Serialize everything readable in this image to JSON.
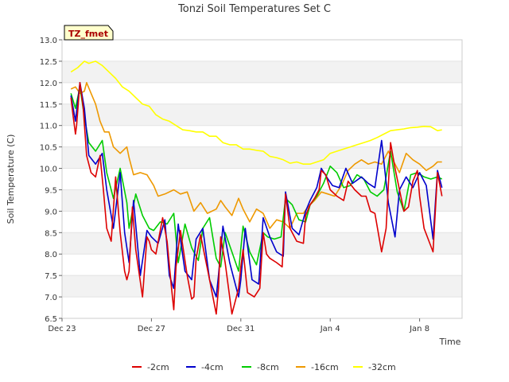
{
  "chart_data": {
    "type": "line",
    "title": "Tonzi Soil Temperatures Set C",
    "xlabel": "Time",
    "ylabel": "Soil Temperature (C)",
    "station_label": "TZ_fmet",
    "x_unit": "days since Dec 23",
    "xlim": [
      0,
      17.9
    ],
    "ylim": [
      6.5,
      13.0
    ],
    "y_ticks": [
      6.5,
      7.0,
      7.5,
      8.0,
      8.5,
      9.0,
      9.5,
      10.0,
      10.5,
      11.0,
      11.5,
      12.0,
      12.5,
      13.0
    ],
    "y_tick_labels": [
      "6.5",
      "7.0",
      "7.5",
      "8.0",
      "8.5",
      "9.0",
      "9.5",
      "10.0",
      "10.5",
      "11.0",
      "11.5",
      "12.0",
      "12.5",
      "13.0"
    ],
    "x_ticks": [
      0,
      4,
      8,
      12,
      16
    ],
    "x_tick_labels": [
      "Dec 23",
      "Dec 27",
      "Dec 31",
      "Jan 4",
      "Jan 8"
    ],
    "grid": true,
    "legend_position": "bottom",
    "series": [
      {
        "name": "-2cm",
        "color": "#dd0000",
        "x": [
          0.4,
          0.5,
          0.6,
          0.65,
          0.8,
          0.95,
          1.1,
          1.3,
          1.5,
          1.7,
          1.85,
          2.0,
          2.2,
          2.4,
          2.6,
          2.8,
          2.9,
          3.0,
          3.15,
          3.3,
          3.6,
          3.8,
          3.9,
          4.0,
          4.2,
          4.5,
          4.7,
          4.9,
          5.0,
          5.1,
          5.3,
          5.6,
          5.8,
          5.9,
          6.0,
          6.2,
          6.6,
          6.9,
          7.0,
          7.1,
          7.3,
          7.6,
          7.9,
          8.0,
          8.1,
          8.3,
          8.6,
          8.85,
          9.0,
          9.15,
          9.3,
          9.6,
          9.85,
          10.0,
          10.2,
          10.5,
          10.8,
          10.9,
          11.1,
          11.3,
          11.5,
          11.6,
          11.8,
          12.0,
          12.3,
          12.6,
          12.8,
          13.1,
          13.4,
          13.6,
          13.8,
          14.0,
          14.3,
          14.5,
          14.7,
          14.9,
          15.1,
          15.3,
          15.5,
          15.7,
          15.9,
          16.0,
          16.2,
          16.6,
          16.8,
          17.0
        ],
        "y": [
          11.65,
          11.2,
          10.8,
          11.0,
          12.0,
          11.4,
          10.3,
          9.9,
          9.8,
          10.3,
          9.5,
          8.6,
          8.3,
          9.8,
          8.5,
          7.6,
          7.4,
          7.6,
          9.1,
          8.1,
          7.0,
          8.4,
          8.3,
          8.1,
          8.0,
          8.85,
          8.3,
          7.2,
          6.7,
          7.7,
          8.55,
          7.5,
          6.95,
          7.0,
          7.9,
          8.45,
          7.4,
          6.6,
          7.2,
          8.4,
          7.8,
          6.6,
          7.2,
          7.7,
          8.1,
          7.1,
          7.0,
          7.2,
          8.5,
          8.0,
          7.9,
          7.8,
          7.7,
          9.4,
          8.6,
          8.3,
          8.25,
          8.9,
          9.15,
          9.3,
          9.5,
          9.95,
          9.85,
          9.5,
          9.35,
          9.25,
          9.7,
          9.5,
          9.35,
          9.35,
          9.0,
          8.95,
          8.05,
          8.6,
          10.6,
          10.0,
          9.5,
          9.0,
          9.1,
          9.7,
          9.95,
          9.35,
          8.6,
          8.05,
          9.9,
          9.35
        ]
      },
      {
        "name": "-4cm",
        "color": "#0000cc",
        "x": [
          0.4,
          0.6,
          0.8,
          1.0,
          1.2,
          1.5,
          1.8,
          2.0,
          2.3,
          2.6,
          2.8,
          3.0,
          3.2,
          3.5,
          3.8,
          4.0,
          4.3,
          4.6,
          4.8,
          5.0,
          5.2,
          5.5,
          5.8,
          6.0,
          6.3,
          6.6,
          6.9,
          7.0,
          7.2,
          7.5,
          7.9,
          8.0,
          8.2,
          8.5,
          8.8,
          9.0,
          9.3,
          9.6,
          9.9,
          10.0,
          10.3,
          10.6,
          10.9,
          11.1,
          11.4,
          11.6,
          11.9,
          12.1,
          12.4,
          12.7,
          13.0,
          13.4,
          13.7,
          14.0,
          14.3,
          14.6,
          14.9,
          15.1,
          15.4,
          15.7,
          16.0,
          16.3,
          16.6,
          16.8,
          17.0
        ],
        "y": [
          11.7,
          11.1,
          12.0,
          11.4,
          10.3,
          10.1,
          10.35,
          9.5,
          8.6,
          9.9,
          8.5,
          7.8,
          9.25,
          7.5,
          8.55,
          8.4,
          8.25,
          8.8,
          7.5,
          7.2,
          8.7,
          7.6,
          7.4,
          8.35,
          8.6,
          7.4,
          7.0,
          7.5,
          8.65,
          7.8,
          7.0,
          7.4,
          8.6,
          7.4,
          7.3,
          8.85,
          8.4,
          8.05,
          7.95,
          9.45,
          8.6,
          8.45,
          9.0,
          9.25,
          9.55,
          10.0,
          9.75,
          9.6,
          9.55,
          10.0,
          9.65,
          9.8,
          9.65,
          9.55,
          10.65,
          9.2,
          8.4,
          9.5,
          9.8,
          9.55,
          9.9,
          9.6,
          8.35,
          9.95,
          9.55
        ]
      },
      {
        "name": "-8cm",
        "color": "#00cc00",
        "x": [
          0.4,
          0.6,
          0.8,
          1.0,
          1.2,
          1.5,
          1.8,
          2.0,
          2.3,
          2.6,
          2.9,
          3.0,
          3.3,
          3.6,
          3.9,
          4.1,
          4.4,
          4.7,
          5.0,
          5.2,
          5.5,
          5.8,
          6.1,
          6.3,
          6.6,
          6.9,
          7.1,
          7.3,
          7.6,
          7.9,
          8.1,
          8.4,
          8.7,
          9.0,
          9.2,
          9.5,
          9.8,
          10.0,
          10.3,
          10.6,
          10.9,
          11.1,
          11.4,
          11.7,
          12.0,
          12.3,
          12.6,
          12.9,
          13.2,
          13.5,
          13.8,
          14.1,
          14.4,
          14.7,
          15.0,
          15.3,
          15.6,
          15.9,
          16.2,
          16.5,
          16.8,
          17.0
        ],
        "y": [
          11.75,
          11.4,
          11.9,
          11.2,
          10.6,
          10.4,
          10.65,
          9.9,
          9.3,
          10.0,
          9.2,
          8.6,
          9.4,
          8.9,
          8.6,
          8.55,
          8.75,
          8.7,
          8.95,
          7.8,
          8.7,
          8.15,
          7.85,
          8.6,
          8.85,
          7.9,
          7.7,
          8.5,
          8.05,
          7.6,
          8.65,
          8.05,
          7.75,
          8.5,
          8.4,
          8.35,
          8.4,
          9.3,
          9.15,
          8.8,
          8.75,
          9.15,
          9.35,
          9.65,
          10.05,
          9.9,
          9.55,
          9.6,
          9.85,
          9.75,
          9.45,
          9.35,
          9.5,
          10.4,
          9.45,
          9.0,
          9.85,
          9.9,
          9.8,
          9.75,
          9.8,
          9.75
        ]
      },
      {
        "name": "-16cm",
        "color": "#ee9900",
        "x": [
          0.4,
          0.6,
          0.8,
          1.0,
          1.1,
          1.3,
          1.5,
          1.7,
          1.9,
          2.1,
          2.3,
          2.6,
          2.9,
          3.0,
          3.2,
          3.5,
          3.8,
          4.1,
          4.3,
          4.6,
          5.0,
          5.3,
          5.6,
          5.9,
          6.2,
          6.5,
          6.9,
          7.1,
          7.3,
          7.6,
          7.9,
          8.1,
          8.4,
          8.7,
          9.0,
          9.3,
          9.6,
          9.9,
          10.2,
          10.5,
          10.8,
          11.0,
          11.3,
          11.6,
          11.9,
          12.2,
          12.5,
          12.8,
          13.1,
          13.4,
          13.7,
          14.0,
          14.3,
          14.6,
          14.9,
          15.1,
          15.4,
          15.7,
          16.0,
          16.3,
          16.6,
          16.8,
          17.0
        ],
        "y": [
          11.85,
          11.9,
          11.75,
          11.8,
          12.0,
          11.75,
          11.5,
          11.1,
          10.85,
          10.85,
          10.5,
          10.35,
          10.5,
          10.25,
          9.85,
          9.9,
          9.85,
          9.6,
          9.35,
          9.4,
          9.5,
          9.4,
          9.45,
          9.0,
          9.2,
          8.95,
          9.05,
          9.25,
          9.1,
          8.9,
          9.3,
          9.05,
          8.75,
          9.05,
          8.95,
          8.6,
          8.8,
          8.75,
          8.6,
          8.95,
          8.95,
          9.1,
          9.25,
          9.45,
          9.4,
          9.35,
          9.6,
          9.95,
          10.1,
          10.2,
          10.1,
          10.15,
          10.1,
          10.4,
          10.1,
          9.9,
          10.35,
          10.2,
          10.1,
          9.95,
          10.05,
          10.15,
          10.15
        ]
      },
      {
        "name": "-32cm",
        "color": "#ffff00",
        "x": [
          0.4,
          0.7,
          1.0,
          1.2,
          1.5,
          1.8,
          2.1,
          2.4,
          2.7,
          3.0,
          3.3,
          3.6,
          3.9,
          4.2,
          4.5,
          4.8,
          5.1,
          5.4,
          5.7,
          6.0,
          6.3,
          6.6,
          6.9,
          7.2,
          7.5,
          7.8,
          8.1,
          8.4,
          8.7,
          9.0,
          9.3,
          9.6,
          9.9,
          10.2,
          10.5,
          10.8,
          11.1,
          11.4,
          11.7,
          12.0,
          12.3,
          12.6,
          12.9,
          13.2,
          13.5,
          13.8,
          14.1,
          14.4,
          14.7,
          15.0,
          15.3,
          15.6,
          15.9,
          16.2,
          16.5,
          16.8,
          17.0
        ],
        "y": [
          12.25,
          12.35,
          12.5,
          12.45,
          12.5,
          12.4,
          12.25,
          12.1,
          11.9,
          11.8,
          11.65,
          11.5,
          11.45,
          11.25,
          11.15,
          11.1,
          11.0,
          10.9,
          10.88,
          10.85,
          10.85,
          10.75,
          10.75,
          10.6,
          10.55,
          10.55,
          10.45,
          10.45,
          10.42,
          10.4,
          10.28,
          10.25,
          10.2,
          10.12,
          10.15,
          10.1,
          10.1,
          10.15,
          10.2,
          10.35,
          10.4,
          10.45,
          10.5,
          10.55,
          10.6,
          10.65,
          10.72,
          10.8,
          10.88,
          10.9,
          10.92,
          10.95,
          10.96,
          10.98,
          10.97,
          10.88,
          10.9
        ]
      }
    ]
  }
}
